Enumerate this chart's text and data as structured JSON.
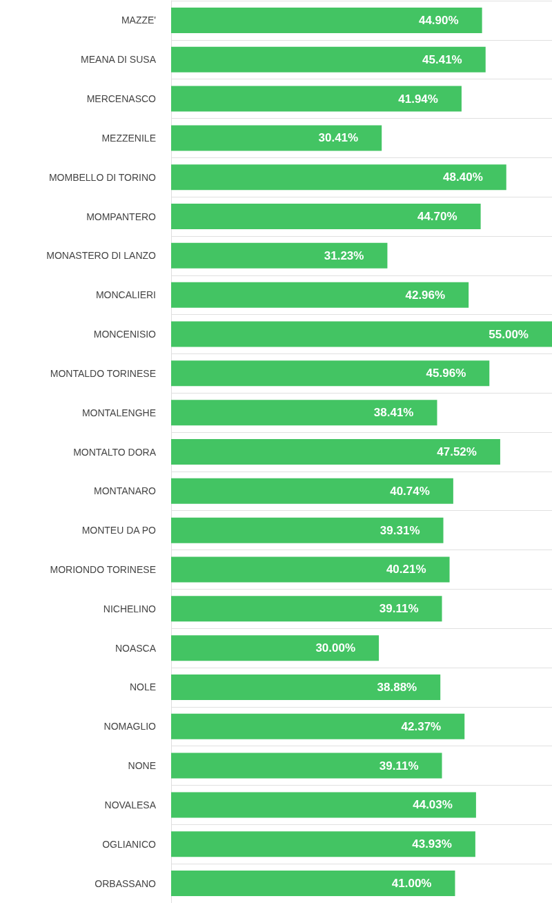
{
  "chart_data": {
    "type": "bar",
    "orientation": "horizontal",
    "grid": "y",
    "categories": [
      "MAZZE'",
      "MEANA DI SUSA",
      "MERCENASCO",
      "MEZZENILE",
      "MOMBELLO DI TORINO",
      "MOMPANTERO",
      "MONASTERO DI LANZO",
      "MONCALIERI",
      "MONCENISIO",
      "MONTALDO TORINESE",
      "MONTALENGHE",
      "MONTALTO DORA",
      "MONTANARO",
      "MONTEU DA PO",
      "MORIONDO TORINESE",
      "NICHELINO",
      "NOASCA",
      "NOLE",
      "NOMAGLIO",
      "NONE",
      "NOVALESA",
      "OGLIANICO",
      "ORBASSANO"
    ],
    "values": [
      44.9,
      45.41,
      41.94,
      30.41,
      48.4,
      44.7,
      31.23,
      42.96,
      55.0,
      45.96,
      38.41,
      47.52,
      40.74,
      39.31,
      40.21,
      39.11,
      30.0,
      38.88,
      42.37,
      39.11,
      44.03,
      43.93,
      41.0
    ],
    "value_labels": [
      "44.90%",
      "45.41%",
      "41.94%",
      "30.41%",
      "48.40%",
      "44.70%",
      "31.23%",
      "42.96%",
      "55.00%",
      "45.96%",
      "38.41%",
      "47.52%",
      "40.74%",
      "39.31%",
      "40.21%",
      "39.11%",
      "30.00%",
      "38.88%",
      "42.37%",
      "39.11%",
      "44.03%",
      "43.93%",
      "41.00%"
    ],
    "color": "#43c463"
  }
}
